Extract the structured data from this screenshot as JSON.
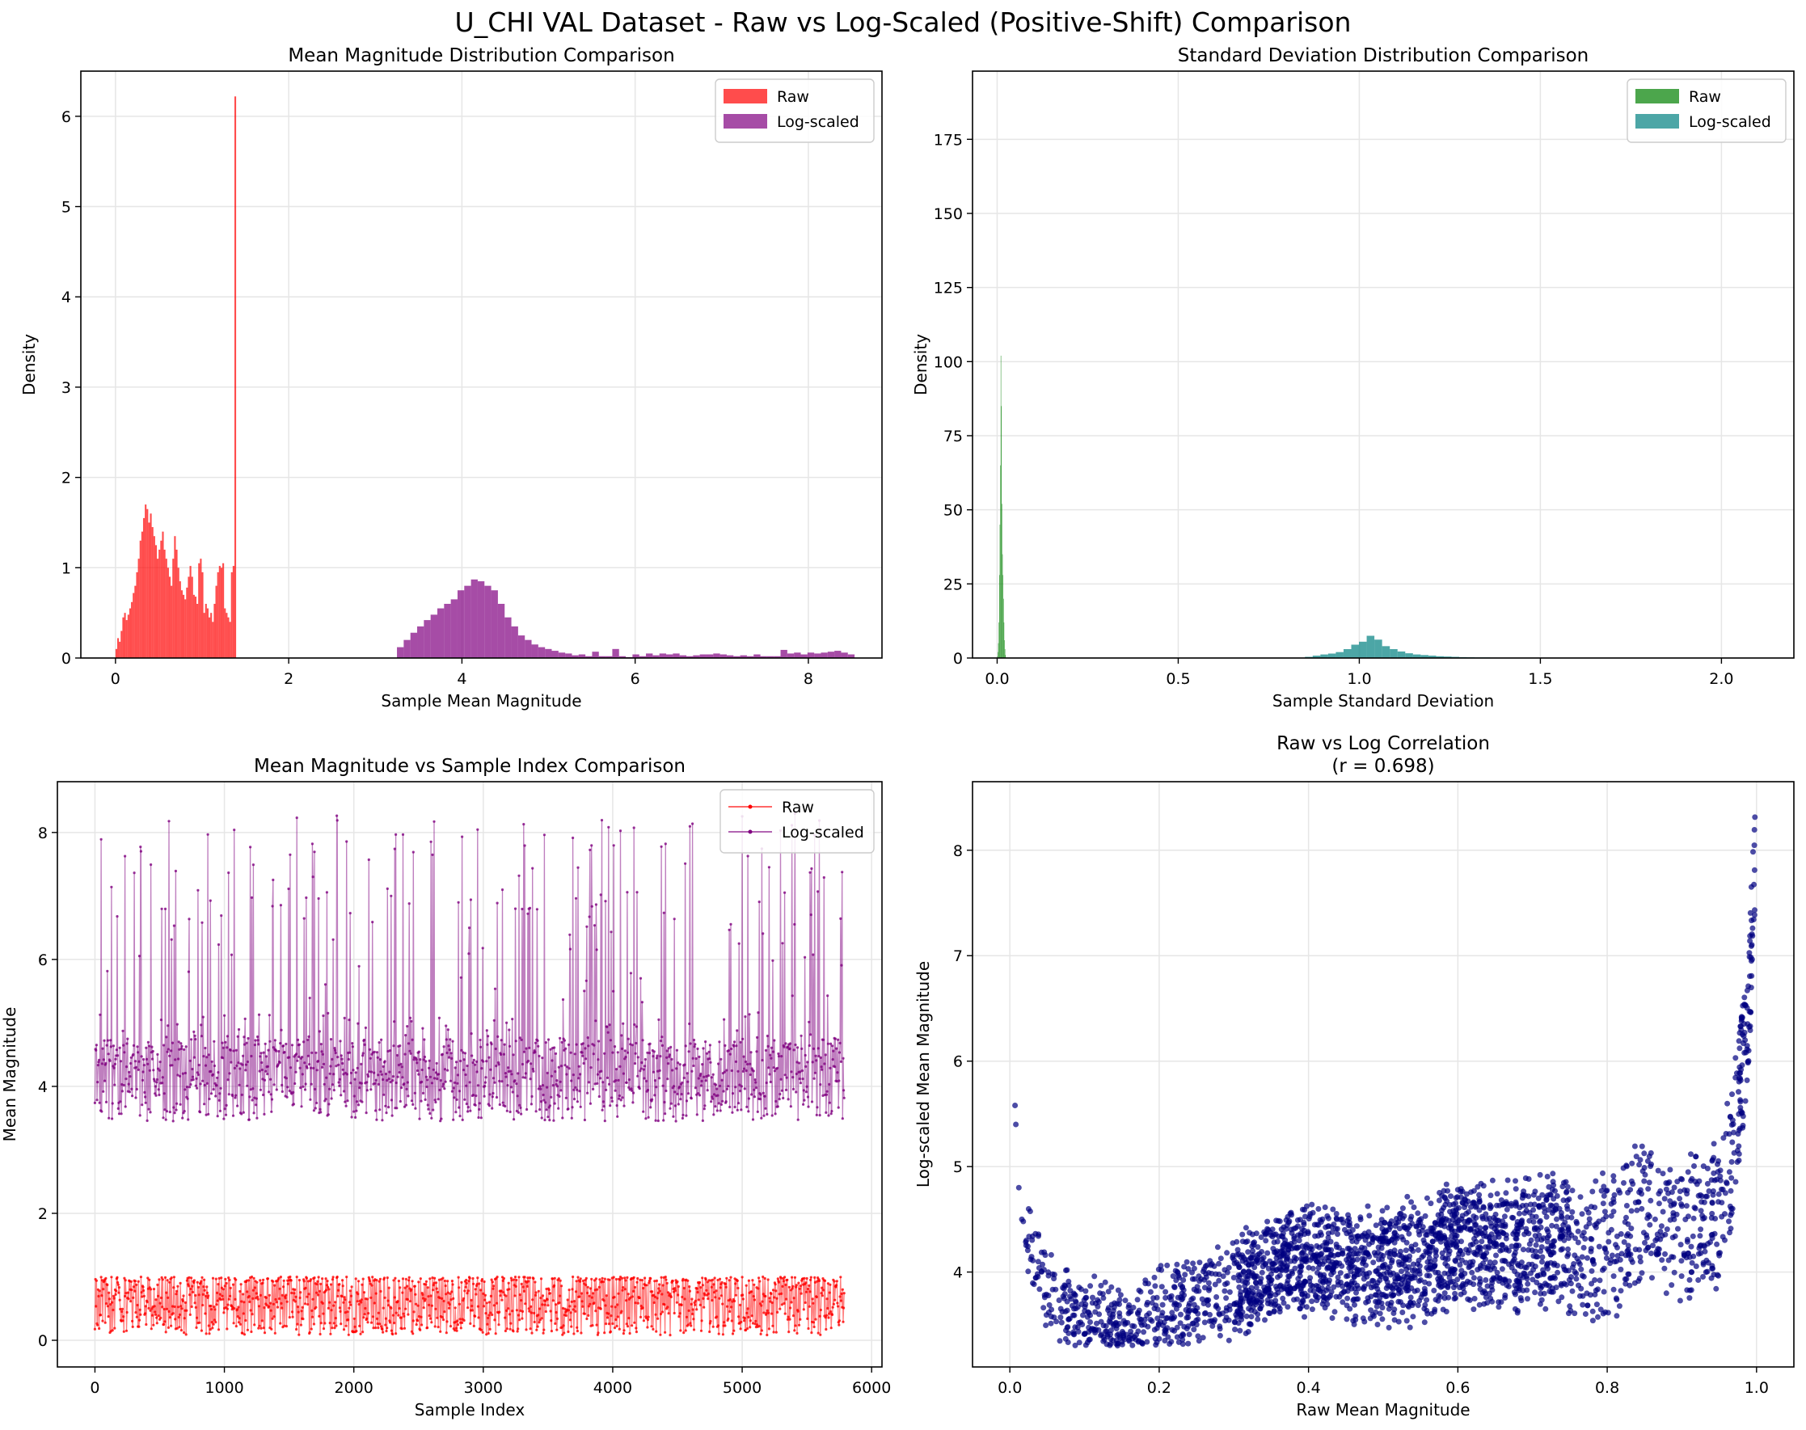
{
  "figure": {
    "suptitle": "U_CHI VAL Dataset - Raw vs Log-Scaled (Positive-Shift) Comparison"
  },
  "chart_data": [
    {
      "type": "histogram",
      "title": "Mean Magnitude Distribution Comparison",
      "xlabel": "Sample Mean Magnitude",
      "ylabel": "Density",
      "xlim": [
        -0.4,
        8.85
      ],
      "ylim": [
        0,
        6.5
      ],
      "xticks": [
        0,
        2,
        4,
        6,
        8
      ],
      "yticks": [
        0,
        1,
        2,
        3,
        4,
        5,
        6
      ],
      "grid": true,
      "legend_placement": "upper-right",
      "series": [
        {
          "name": "Raw",
          "color": "#ff0000",
          "alpha": 0.7,
          "bin_start": 0.0,
          "bin_width": 0.0199,
          "values": [
            0.1,
            0.22,
            0.18,
            0.3,
            0.45,
            0.5,
            0.42,
            0.48,
            0.55,
            0.62,
            0.72,
            0.8,
            0.95,
            1.1,
            1.3,
            1.4,
            1.55,
            1.7,
            1.65,
            1.5,
            1.6,
            1.45,
            1.35,
            1.25,
            1.1,
            1.2,
            1.3,
            1.4,
            1.2,
            1.1,
            1.0,
            0.9,
            0.8,
            1.1,
            1.35,
            1.2,
            1.0,
            0.85,
            0.75,
            0.7,
            0.65,
            0.78,
            0.9,
            1.02,
            0.9,
            0.7,
            0.68,
            0.6,
            1.05,
            1.1,
            0.95,
            0.5,
            0.6,
            0.55,
            0.45,
            0.5,
            0.4,
            0.6,
            0.8,
            0.95,
            1.02,
            1.0,
            1.05,
            0.55,
            0.5,
            0.45,
            0.4,
            0.95,
            1.02,
            6.22
          ]
        },
        {
          "name": "Log-scaled",
          "color": "#800080",
          "alpha": 0.7,
          "bin_start": 3.25,
          "bin_width": 0.0777,
          "values": [
            0.12,
            0.2,
            0.28,
            0.35,
            0.42,
            0.48,
            0.55,
            0.6,
            0.65,
            0.75,
            0.8,
            0.87,
            0.85,
            0.8,
            0.75,
            0.6,
            0.45,
            0.35,
            0.25,
            0.2,
            0.15,
            0.12,
            0.1,
            0.08,
            0.06,
            0.05,
            0.03,
            0.04,
            0.02,
            0.07,
            0.02,
            0.02,
            0.1,
            0.02,
            0.01,
            0.04,
            0.02,
            0.05,
            0.03,
            0.05,
            0.04,
            0.05,
            0.03,
            0.02,
            0.03,
            0.04,
            0.04,
            0.05,
            0.04,
            0.03,
            0.02,
            0.03,
            0.02,
            0.04,
            0.02,
            0.02,
            0.02,
            0.09,
            0.05,
            0.06,
            0.04,
            0.06,
            0.05,
            0.06,
            0.07,
            0.08,
            0.06,
            0.04
          ]
        }
      ]
    },
    {
      "type": "histogram",
      "title": "Standard Deviation Distribution Comparison",
      "xlabel": "Sample Standard Deviation",
      "ylabel": "Density",
      "xlim": [
        -0.068,
        2.2
      ],
      "ylim": [
        0,
        198
      ],
      "xticks": [
        0.0,
        0.5,
        1.0,
        1.5,
        2.0
      ],
      "yticks": [
        0,
        25,
        50,
        75,
        100,
        125,
        150,
        175
      ],
      "grid": true,
      "legend_placement": "upper-right",
      "series": [
        {
          "name": "Raw",
          "color": "#008000",
          "alpha": 0.7,
          "bin_start": 0.0,
          "bin_width": 0.0014,
          "values": [
            0.5,
            2,
            5,
            12,
            28,
            45,
            65,
            102,
            85,
            52,
            35,
            28,
            20,
            12,
            6,
            3,
            1
          ]
        },
        {
          "name": "Log-scaled",
          "color": "#008080",
          "alpha": 0.7,
          "bin_start": 0.85,
          "bin_width": 0.0213,
          "values": [
            0.4,
            0.8,
            1.2,
            1.5,
            2.0,
            3.0,
            4.5,
            5.5,
            7.5,
            6.2,
            4.0,
            3.0,
            2.2,
            1.6,
            1.2,
            1.0,
            0.8,
            0.6,
            0.5,
            0.4,
            0.3,
            0.25,
            0.2,
            0.2,
            0.15,
            0.1,
            0.08
          ]
        }
      ]
    },
    {
      "type": "line",
      "title": "Mean Magnitude vs Sample Index Comparison",
      "xlabel": "Sample Index",
      "ylabel": "Mean Magnitude",
      "xlim": [
        -290,
        6080
      ],
      "ylim": [
        -0.42,
        8.8
      ],
      "xticks": [
        0,
        1000,
        2000,
        3000,
        4000,
        5000,
        6000
      ],
      "yticks": [
        0,
        2,
        4,
        6,
        8
      ],
      "grid": true,
      "legend_placement": "upper-right",
      "n_samples": 5790,
      "series": [
        {
          "name": "Raw",
          "color": "#ff0000",
          "marker": "dot",
          "y_range": [
            0.02,
            1.0
          ],
          "y_typical": 0.55
        },
        {
          "name": "Log-scaled",
          "color": "#800080",
          "marker": "dot",
          "y_range": [
            3.3,
            8.4
          ],
          "y_typical": 4.2
        }
      ]
    },
    {
      "type": "scatter",
      "title": "Raw vs Log Correlation",
      "subtitle": "(r = 0.698)",
      "xlabel": "Raw Mean Magnitude",
      "ylabel": "Log-scaled Mean Magnitude",
      "xlim": [
        -0.05,
        1.05
      ],
      "ylim": [
        3.1,
        8.65
      ],
      "xticks": [
        0.0,
        0.2,
        0.4,
        0.6,
        0.8,
        1.0
      ],
      "yticks": [
        4,
        5,
        6,
        7,
        8
      ],
      "grid": true,
      "color": "#000080",
      "trend": [
        [
          0.005,
          5.6
        ],
        [
          0.01,
          4.8
        ],
        [
          0.02,
          4.4
        ],
        [
          0.05,
          3.8
        ],
        [
          0.1,
          3.55
        ],
        [
          0.15,
          3.5
        ],
        [
          0.2,
          3.6
        ],
        [
          0.3,
          3.85
        ],
        [
          0.4,
          4.15
        ],
        [
          0.5,
          4.0
        ],
        [
          0.6,
          4.25
        ],
        [
          0.7,
          4.3
        ],
        [
          0.8,
          4.2
        ],
        [
          0.85,
          4.6
        ],
        [
          0.9,
          4.4
        ],
        [
          0.95,
          4.6
        ],
        [
          0.97,
          5.2
        ],
        [
          0.99,
          6.5
        ],
        [
          1.0,
          8.4
        ]
      ]
    }
  ]
}
